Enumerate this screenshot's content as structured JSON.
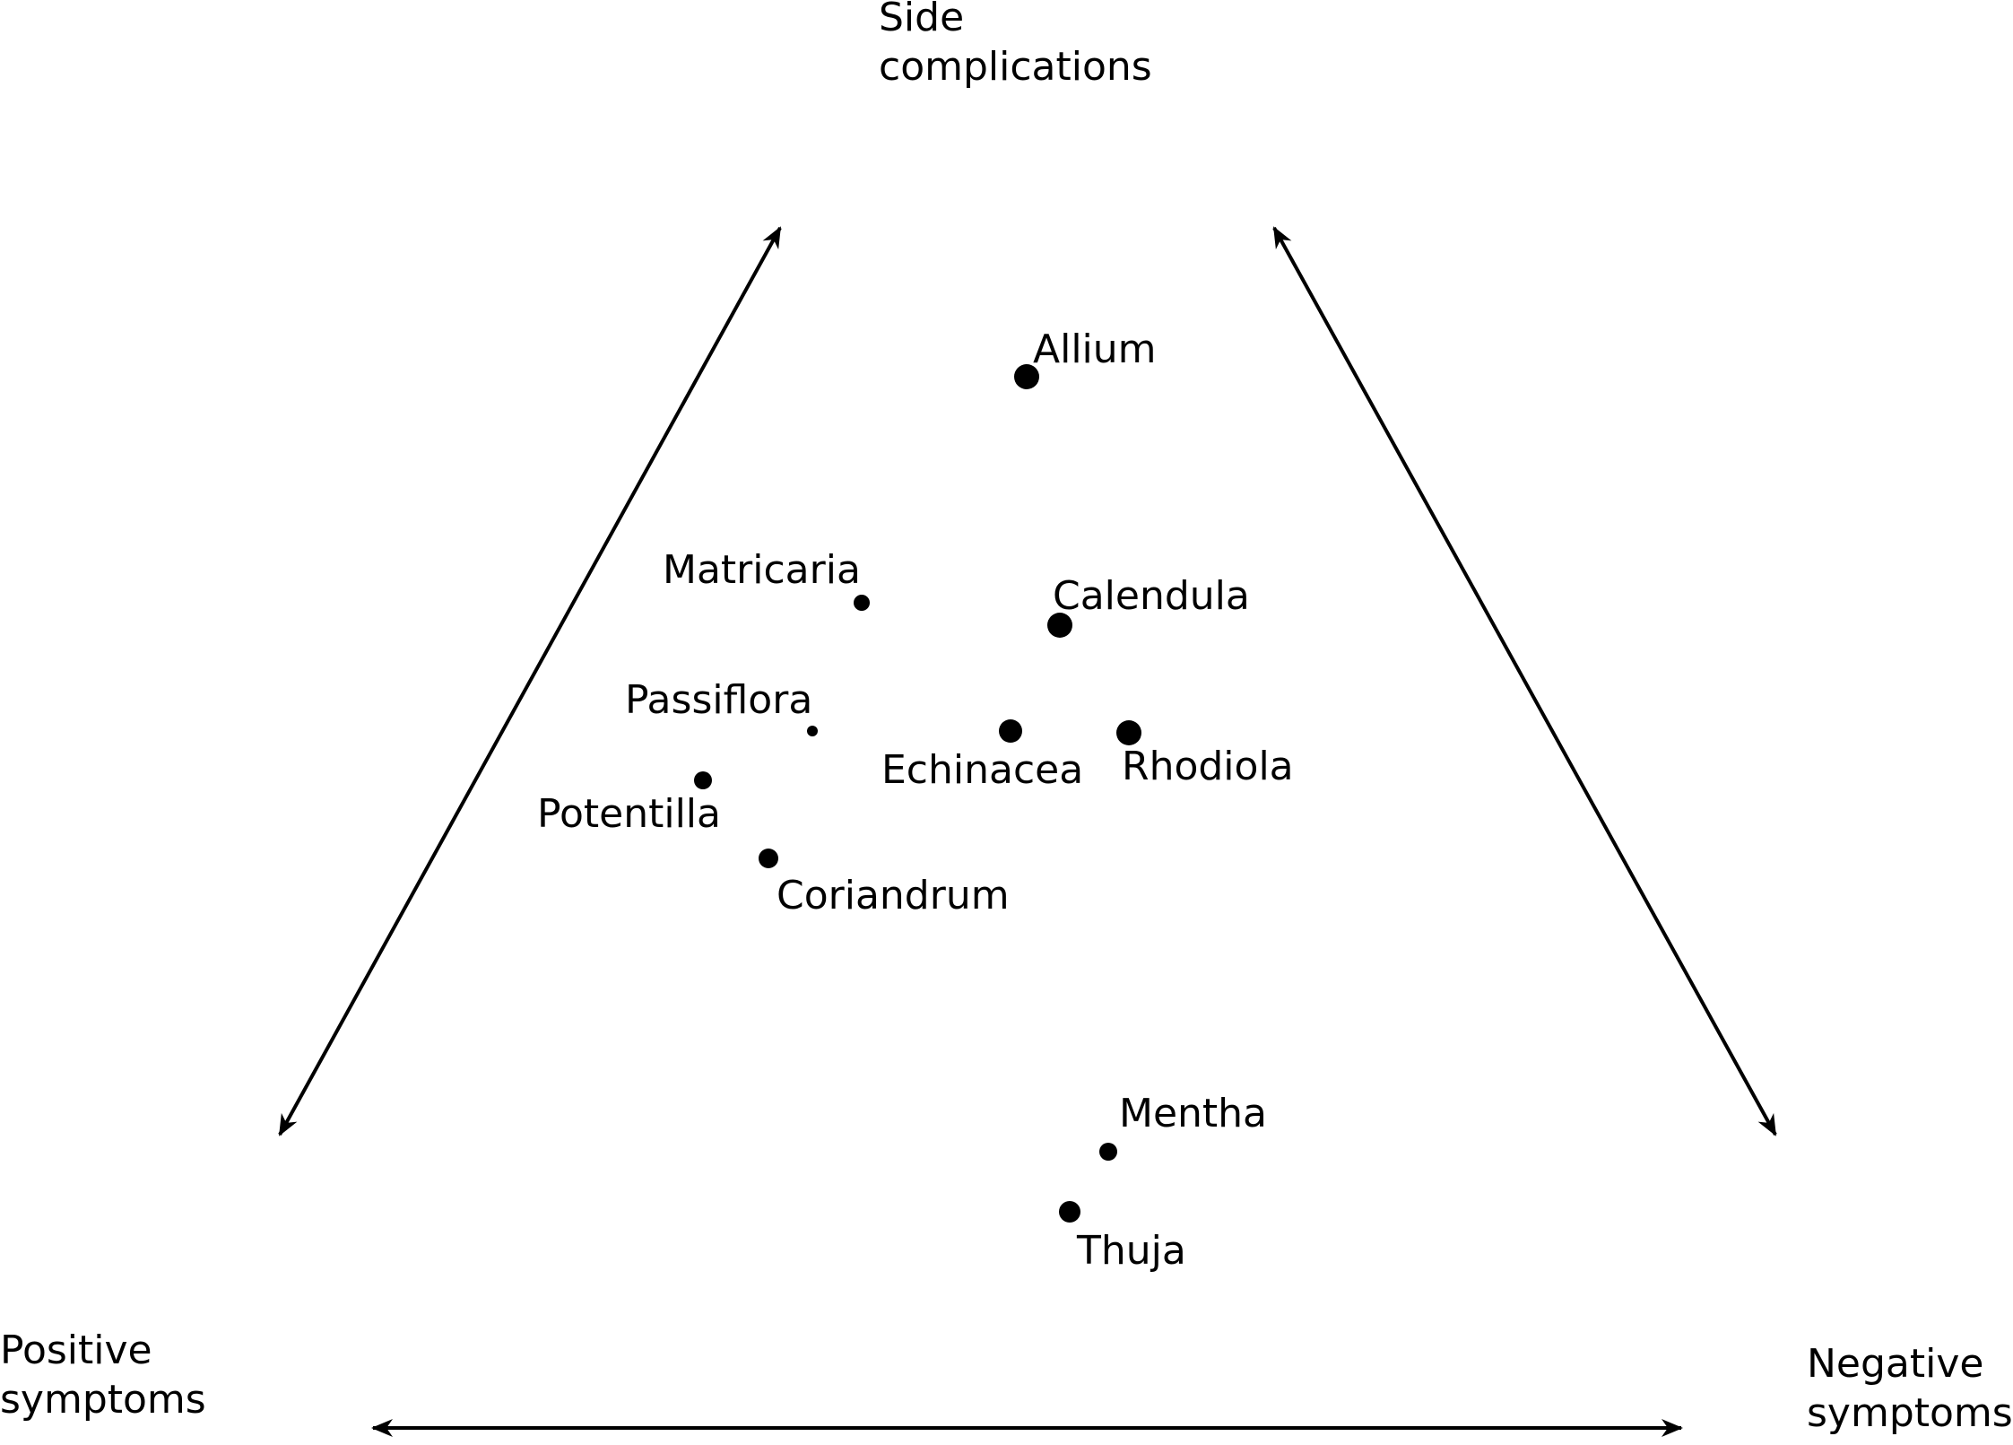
{
  "corners": {
    "top": [
      "Side",
      "complications"
    ],
    "bottom_left": [
      "Positive",
      "symptoms"
    ],
    "bottom_right": [
      "Negative",
      "symptoms"
    ]
  },
  "plants": [
    {
      "name": "Allium",
      "size": "large"
    },
    {
      "name": "Matricaria",
      "size": "small"
    },
    {
      "name": "Calendula",
      "size": "large"
    },
    {
      "name": "Passiflora",
      "size": "tiny"
    },
    {
      "name": "Echinacea",
      "size": "large"
    },
    {
      "name": "Rhodiola",
      "size": "large"
    },
    {
      "name": "Potentilla",
      "size": "medium"
    },
    {
      "name": "Coriandrum",
      "size": "medium"
    },
    {
      "name": "Mentha",
      "size": "medium"
    },
    {
      "name": "Thuja",
      "size": "large"
    }
  ],
  "colors": {
    "ink": "#000000",
    "background": "#ffffff"
  }
}
